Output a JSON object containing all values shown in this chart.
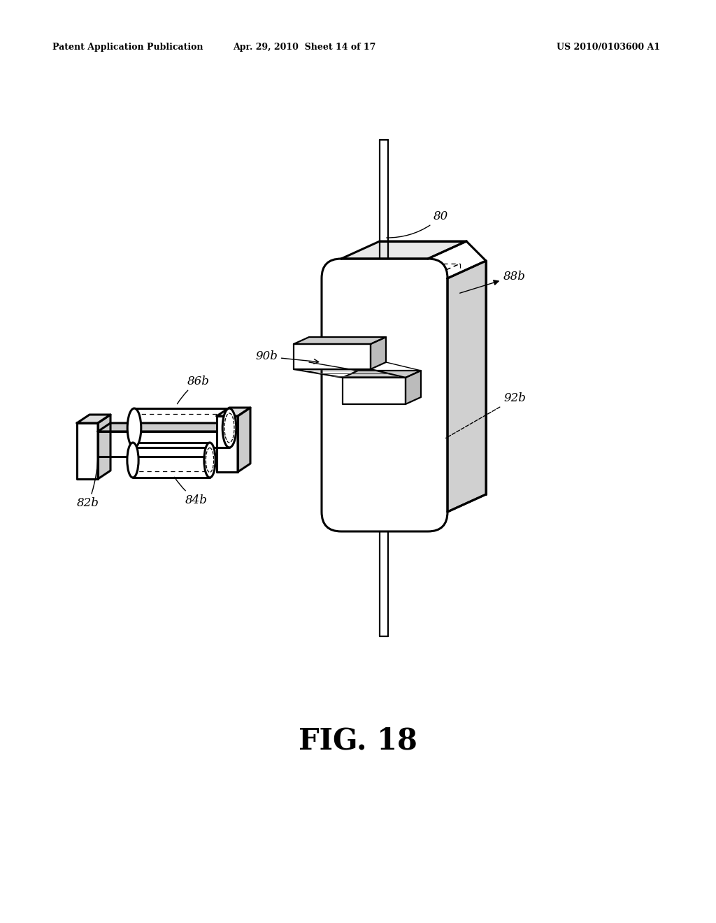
{
  "background_color": "#ffffff",
  "header_left": "Patent Application Publication",
  "header_center": "Apr. 29, 2010  Sheet 14 of 17",
  "header_right": "US 2010/0103600 A1",
  "figure_label": "FIG. 18",
  "lw_main": 1.6,
  "lw_thick": 2.2,
  "lw_dash": 0.9,
  "lw_thin": 1.0
}
